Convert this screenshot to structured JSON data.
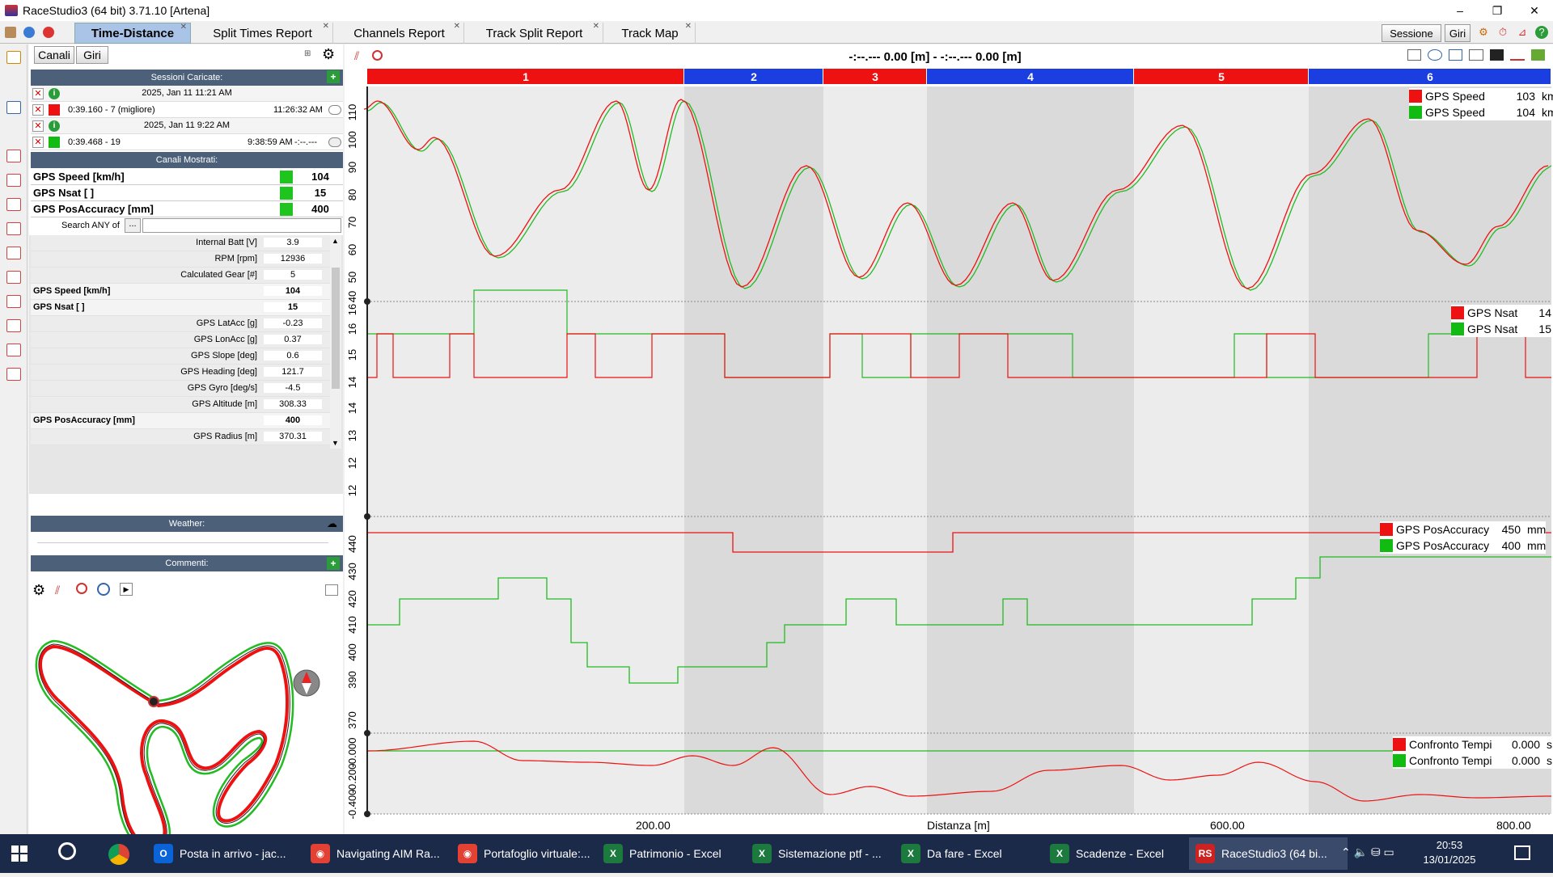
{
  "window": {
    "title": "RaceStudio3 (64 bit) 3.71.10 [Artena]",
    "min": "–",
    "max": "❐",
    "close": "✕"
  },
  "tabs": [
    {
      "label": "Time-Distance",
      "active": true
    },
    {
      "label": "Split Times Report"
    },
    {
      "label": "Channels Report"
    },
    {
      "label": "Track Split Report"
    },
    {
      "label": "Track Map"
    }
  ],
  "top_buttons": {
    "sessione": "Sessione",
    "giri": "Giri"
  },
  "left_buttons": {
    "canali": "Canali",
    "giri": "Giri"
  },
  "cursor_readout": "-:--.--- 0.00 [m] - -:--.--- 0.00 [m]",
  "sessions_header": "Sessioni Caricate:",
  "sessions": [
    {
      "date": "2025, Jan 11 11:21 AM",
      "lap": "0:39.160 - 7 (migliore)",
      "time": "11:26:32 AM",
      "extra": "",
      "color": "#ee1111"
    },
    {
      "date": "2025, Jan 11 9:22 AM",
      "lap": "0:39.468 - 19",
      "time": "9:38:59 AM",
      "extra": "-:--.---",
      "color": "#11bb11"
    }
  ],
  "channels_header": "Canali Mostrati:",
  "shown_channels": [
    {
      "name": "GPS Speed [km/h]",
      "value": "104"
    },
    {
      "name": "GPS Nsat [ ]",
      "value": "15"
    },
    {
      "name": "GPS PosAccuracy [mm]",
      "value": "400"
    }
  ],
  "search": {
    "label": "Search ANY of",
    "button": "..."
  },
  "channel_list": [
    {
      "name": "Internal Batt [V]",
      "value": "3.9",
      "bold": false
    },
    {
      "name": "RPM [rpm]",
      "value": "12936",
      "bold": false
    },
    {
      "name": "Calculated Gear [#]",
      "value": "5",
      "bold": false
    },
    {
      "name": "GPS Speed [km/h]",
      "value": "104",
      "bold": true
    },
    {
      "name": "GPS Nsat [ ]",
      "value": "15",
      "bold": true
    },
    {
      "name": "GPS LatAcc [g]",
      "value": "-0.23",
      "bold": false
    },
    {
      "name": "GPS LonAcc [g]",
      "value": "0.37",
      "bold": false
    },
    {
      "name": "GPS Slope [deg]",
      "value": "0.6",
      "bold": false
    },
    {
      "name": "GPS Heading [deg]",
      "value": "121.7",
      "bold": false
    },
    {
      "name": "GPS Gyro [deg/s]",
      "value": "-4.5",
      "bold": false
    },
    {
      "name": "GPS Altitude [m]",
      "value": "308.33",
      "bold": false
    },
    {
      "name": "GPS PosAccuracy [mm]",
      "value": "400",
      "bold": true
    },
    {
      "name": "GPS Radius [m]",
      "value": "370.31",
      "bold": false
    }
  ],
  "weather_header": "Weather:",
  "comments_header": "Commenti:",
  "sectors": [
    "1",
    "2",
    "3",
    "4",
    "5",
    "6"
  ],
  "legends": {
    "speed": [
      {
        "name": "GPS Speed",
        "value": "103",
        "unit": "km/h",
        "color": "#ee1111"
      },
      {
        "name": "GPS Speed",
        "value": "104",
        "unit": "km/h",
        "color": "#11bb11"
      }
    ],
    "nsat": [
      {
        "name": "GPS Nsat",
        "value": "14",
        "unit": "",
        "color": "#ee1111"
      },
      {
        "name": "GPS Nsat",
        "value": "15",
        "unit": "",
        "color": "#11bb11"
      }
    ],
    "posacc": [
      {
        "name": "GPS PosAccuracy",
        "value": "450",
        "unit": "mm",
        "color": "#ee1111"
      },
      {
        "name": "GPS PosAccuracy",
        "value": "400",
        "unit": "mm",
        "color": "#11bb11"
      }
    ],
    "delta": [
      {
        "name": "Confronto Tempi",
        "value": "0.000",
        "unit": "s",
        "color": "#ee1111"
      },
      {
        "name": "Confronto Tempi",
        "value": "0.000",
        "unit": "s",
        "color": "#11bb11"
      }
    ]
  },
  "x_axis": {
    "label": "Distanza [m]",
    "ticks": [
      "200.00",
      "600.00",
      "800.00"
    ]
  },
  "y_axes": {
    "speed": [
      "110",
      "100",
      "90",
      "80",
      "70",
      "60",
      "50",
      "40"
    ],
    "nsat": [
      "16",
      "16",
      "15",
      "14",
      "14",
      "13",
      "12",
      "12"
    ],
    "posacc": [
      "440",
      "430",
      "420",
      "410",
      "400",
      "390",
      "370"
    ],
    "delta": [
      "-0.000",
      "-0.200",
      "-0.400"
    ]
  },
  "taskbar": {
    "apps": [
      {
        "label": "Posta in arrivo - jac...",
        "color": "#0a64d8",
        "glyph": "O"
      },
      {
        "label": "Navigating AIM Ra...",
        "color": "#e34133",
        "glyph": "◉"
      },
      {
        "label": "Portafoglio virtuale:...",
        "color": "#e34133",
        "glyph": "◉"
      },
      {
        "label": "Patrimonio - Excel",
        "color": "#1d7a3e",
        "glyph": "X"
      },
      {
        "label": "Sistemazione ptf - ...",
        "color": "#1d7a3e",
        "glyph": "X"
      },
      {
        "label": "Da fare - Excel",
        "color": "#1d7a3e",
        "glyph": "X"
      },
      {
        "label": "Scadenze - Excel",
        "color": "#1d7a3e",
        "glyph": "X"
      },
      {
        "label": "RaceStudio3 (64 bi...",
        "color": "#cc2222",
        "glyph": "RS"
      }
    ],
    "time": "20:53",
    "date": "13/01/2025"
  }
}
